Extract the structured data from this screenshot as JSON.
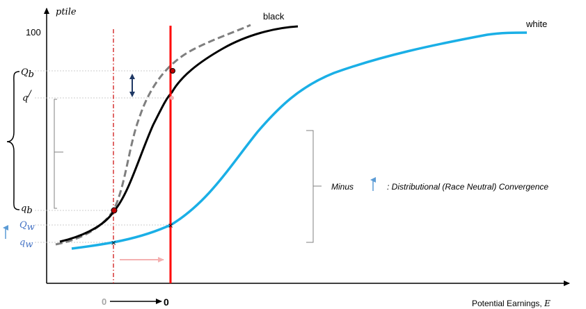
{
  "labels": {
    "y_axis": "ptile",
    "y_100": "100",
    "Q_b_main": "Q",
    "Q_b_sub": "b",
    "q_prime_main": "q",
    "q_prime_sup": "/",
    "q_b_main": "q",
    "q_b_sub": "b",
    "Q_w_main": "Q",
    "Q_w_sub": "w",
    "q_w_main": "q",
    "q_w_sub": "w",
    "black_curve": "black",
    "white_curve": "white",
    "minus": "Minus",
    "convergence": ": Distributional (Race Neutral) Convergence",
    "x_axis_text": "Potential Earnings, ",
    "x_axis_var": "E",
    "zero_old": "0",
    "zero_new": "0"
  },
  "colors": {
    "black_curve": "#000000",
    "black_shifted_curve": "#7f7f7f",
    "white_curve": "#1aafe6",
    "threshold_new": "#ff0000",
    "threshold_old": "#cc0000",
    "shift_arrow": "#f4b0b0",
    "guide_lines": "#bfbfbf",
    "blue_arrow": "#5b9bd5",
    "dark_arrow": "#1f3864"
  }
}
